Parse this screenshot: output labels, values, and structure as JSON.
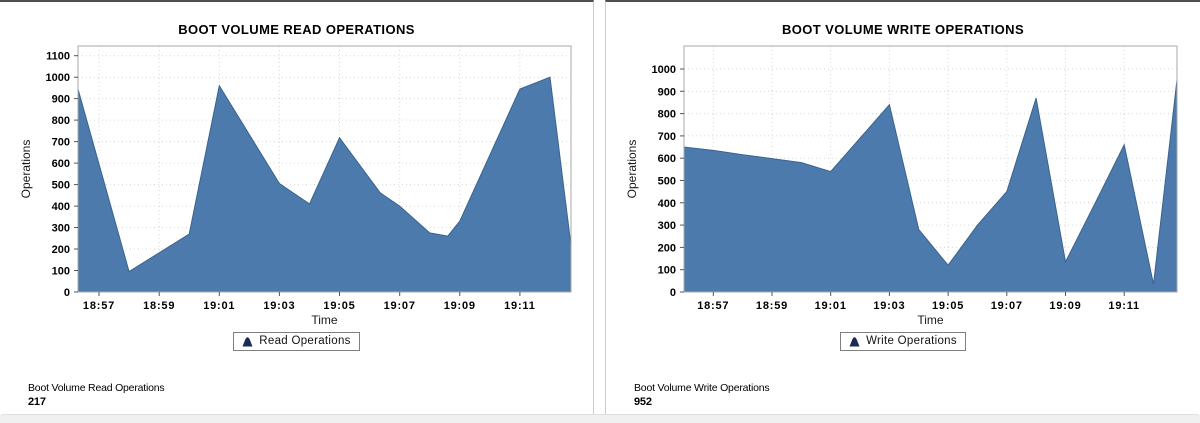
{
  "colors": {
    "area_fill": "#4d7aac",
    "area_stroke": "#3a648f",
    "legend_icon": "#1b2b55",
    "grid": "#d6d6d6",
    "plot_border": "#a8a8a8"
  },
  "panels": [
    {
      "title": "BOOT VOLUME READ OPERATIONS",
      "legend_label": "Read Operations",
      "summary_label": "Boot Volume Read Operations",
      "summary_value": "217"
    },
    {
      "title": "BOOT VOLUME WRITE OPERATIONS",
      "legend_label": "Write Operations",
      "summary_label": "Boot Volume Write Operations",
      "summary_value": "952"
    }
  ],
  "chart_data": [
    {
      "type": "area",
      "title": "BOOT VOLUME READ OPERATIONS",
      "xlabel": "Time",
      "ylabel": "Operations",
      "legend": [
        "Read Operations"
      ],
      "legend_position": "bottom",
      "grid": "dotted",
      "x_tick_labels": [
        "18:57",
        "18:59",
        "19:01",
        "19:03",
        "19:05",
        "19:07",
        "19:09",
        "19:11"
      ],
      "x_tick_minutes": [
        1,
        3,
        5,
        7,
        9,
        11,
        13,
        15
      ],
      "x_domain_minutes": [
        0.3,
        16.7
      ],
      "x_domain_start_time": "18:56",
      "y_ticks": [
        0,
        100,
        200,
        300,
        400,
        500,
        600,
        700,
        800,
        900,
        1000,
        1100
      ],
      "y_domain": [
        0,
        1145
      ],
      "series": [
        {
          "name": "Read Operations",
          "points_minute_value": [
            [
              0.3,
              945
            ],
            [
              2,
              95
            ],
            [
              4,
              270
            ],
            [
              5,
              960
            ],
            [
              7,
              505
            ],
            [
              8,
              410
            ],
            [
              9,
              718
            ],
            [
              10.35,
              462
            ],
            [
              11,
              400
            ],
            [
              12,
              275
            ],
            [
              12.6,
              260
            ],
            [
              13,
              330
            ],
            [
              15,
              945
            ],
            [
              16,
              1000
            ],
            [
              16.7,
              217
            ]
          ]
        }
      ],
      "latest_value": 217
    },
    {
      "type": "area",
      "title": "BOOT VOLUME WRITE OPERATIONS",
      "xlabel": "Time",
      "ylabel": "Operations",
      "legend": [
        "Write Operations"
      ],
      "legend_position": "bottom",
      "grid": "dotted",
      "x_tick_labels": [
        "18:57",
        "18:59",
        "19:01",
        "19:03",
        "19:05",
        "19:07",
        "19:09",
        "19:11"
      ],
      "x_tick_minutes": [
        1,
        3,
        5,
        7,
        9,
        11,
        13,
        15
      ],
      "x_domain_minutes": [
        0,
        16.8
      ],
      "x_domain_start_time": "18:56",
      "y_ticks": [
        0,
        100,
        200,
        300,
        400,
        500,
        600,
        700,
        800,
        900,
        1000
      ],
      "y_domain": [
        0,
        1103
      ],
      "series": [
        {
          "name": "Write Operations",
          "points_minute_value": [
            [
              0,
              650
            ],
            [
              1,
              635
            ],
            [
              2,
              615
            ],
            [
              3,
              598
            ],
            [
              4,
              580
            ],
            [
              5,
              540
            ],
            [
              6,
              690
            ],
            [
              7,
              840
            ],
            [
              8,
              280
            ],
            [
              9,
              120
            ],
            [
              10,
              300
            ],
            [
              11,
              450
            ],
            [
              12,
              870
            ],
            [
              13,
              135
            ],
            [
              14,
              395
            ],
            [
              15,
              660
            ],
            [
              16,
              35
            ],
            [
              16.8,
              952
            ]
          ]
        }
      ],
      "latest_value": 952
    }
  ]
}
